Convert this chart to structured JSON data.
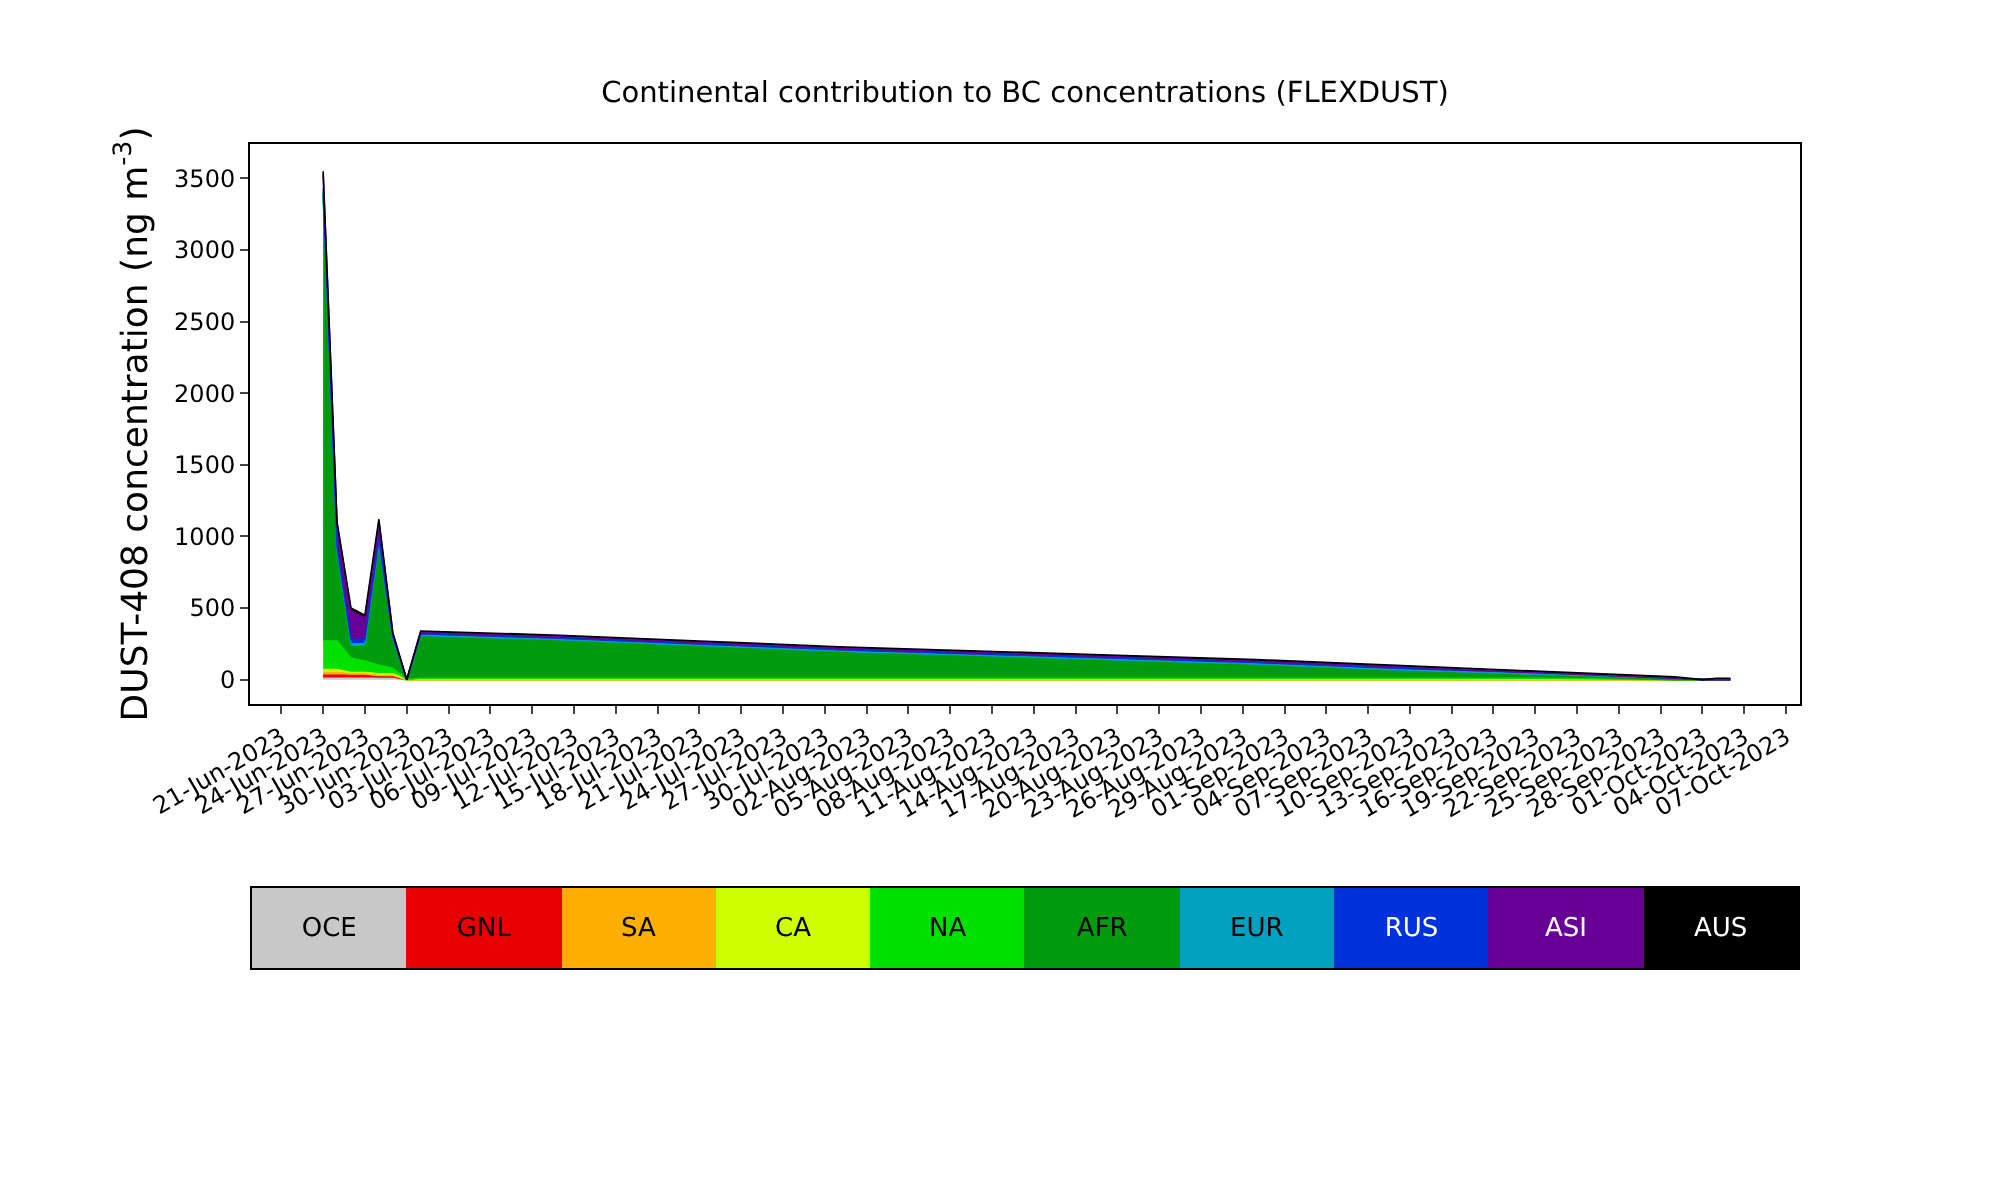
{
  "chart_data": {
    "type": "area",
    "stacked": true,
    "title": "Continental contribution to BC concentrations (FLEXDUST)",
    "ylabel": "DUST-408 concentration (ng m$^{-3}$)",
    "x": [
      "2023-06-24",
      "2023-06-25",
      "2023-06-26",
      "2023-06-27",
      "2023-06-28",
      "2023-06-29",
      "2023-06-30",
      "2023-07-01",
      "2023-07-11",
      "2023-07-21",
      "2023-07-31",
      "2023-08-10",
      "2023-08-20",
      "2023-08-30",
      "2023-09-09",
      "2023-09-19",
      "2023-09-29",
      "2023-10-01",
      "2023-10-02",
      "2023-10-03"
    ],
    "series": [
      {
        "name": "OCE",
        "color": "#c8c8c8",
        "values": [
          10,
          10,
          10,
          10,
          10,
          10,
          0,
          0,
          0,
          0,
          0,
          0,
          0,
          0,
          0,
          0,
          0,
          0,
          0,
          0
        ]
      },
      {
        "name": "GNL",
        "color": "#e60000",
        "values": [
          20,
          20,
          20,
          20,
          10,
          10,
          0,
          0,
          0,
          0,
          0,
          0,
          0,
          0,
          0,
          0,
          0,
          0,
          0,
          0
        ]
      },
      {
        "name": "SA",
        "color": "#ffaf00",
        "values": [
          20,
          20,
          10,
          10,
          10,
          10,
          0,
          0,
          0,
          0,
          0,
          0,
          0,
          0,
          0,
          0,
          0,
          0,
          0,
          0
        ]
      },
      {
        "name": "CA",
        "color": "#cdff00",
        "values": [
          20,
          20,
          10,
          10,
          10,
          10,
          0,
          0,
          0,
          0,
          0,
          0,
          0,
          0,
          0,
          0,
          0,
          0,
          0,
          0
        ]
      },
      {
        "name": "NA",
        "color": "#00e100",
        "values": [
          200,
          200,
          100,
          80,
          60,
          40,
          0,
          10,
          10,
          10,
          10,
          10,
          10,
          10,
          10,
          10,
          0,
          0,
          0,
          0
        ]
      },
      {
        "name": "AFR",
        "color": "#009b0f",
        "values": [
          3110,
          610,
          80,
          100,
          830,
          200,
          0,
          290,
          260,
          220,
          180,
          150,
          120,
          90,
          50,
          20,
          0,
          0,
          0,
          0
        ]
      },
      {
        "name": "EUR",
        "color": "#00a0be",
        "values": [
          20,
          20,
          20,
          20,
          20,
          10,
          0,
          10,
          10,
          10,
          10,
          10,
          10,
          10,
          10,
          10,
          10,
          0,
          0,
          0
        ]
      },
      {
        "name": "RUS",
        "color": "#0032dc",
        "values": [
          30,
          30,
          30,
          30,
          30,
          10,
          0,
          10,
          10,
          10,
          10,
          10,
          10,
          10,
          10,
          10,
          0,
          0,
          0,
          0
        ]
      },
      {
        "name": "ASI",
        "color": "#690096",
        "values": [
          100,
          150,
          200,
          150,
          120,
          20,
          0,
          10,
          10,
          10,
          10,
          10,
          10,
          10,
          10,
          0,
          0,
          0,
          0,
          0
        ]
      },
      {
        "name": "AUS",
        "color": "#000000",
        "values": [
          20,
          20,
          20,
          20,
          20,
          10,
          0,
          10,
          10,
          10,
          10,
          10,
          10,
          10,
          10,
          10,
          10,
          0,
          10,
          10
        ]
      }
    ],
    "xlim": [
      "2023-06-18T18:00",
      "2023-10-08"
    ],
    "xticks": [
      {
        "value": "2023-06-21",
        "label": "21-Jun-2023"
      },
      {
        "value": "2023-06-24",
        "label": "24-Jun-2023"
      },
      {
        "value": "2023-06-27",
        "label": "27-Jun-2023"
      },
      {
        "value": "2023-06-30",
        "label": "30-Jun-2023"
      },
      {
        "value": "2023-07-03",
        "label": "03-Jul-2023"
      },
      {
        "value": "2023-07-06",
        "label": "06-Jul-2023"
      },
      {
        "value": "2023-07-09",
        "label": "09-Jul-2023"
      },
      {
        "value": "2023-07-12",
        "label": "12-Jul-2023"
      },
      {
        "value": "2023-07-15",
        "label": "15-Jul-2023"
      },
      {
        "value": "2023-07-18",
        "label": "18-Jul-2023"
      },
      {
        "value": "2023-07-21",
        "label": "21-Jul-2023"
      },
      {
        "value": "2023-07-24",
        "label": "24-Jul-2023"
      },
      {
        "value": "2023-07-27",
        "label": "27-Jul-2023"
      },
      {
        "value": "2023-07-30",
        "label": "30-Jul-2023"
      },
      {
        "value": "2023-08-02",
        "label": "02-Aug-2023"
      },
      {
        "value": "2023-08-05",
        "label": "05-Aug-2023"
      },
      {
        "value": "2023-08-08",
        "label": "08-Aug-2023"
      },
      {
        "value": "2023-08-11",
        "label": "11-Aug-2023"
      },
      {
        "value": "2023-08-14",
        "label": "14-Aug-2023"
      },
      {
        "value": "2023-08-17",
        "label": "17-Aug-2023"
      },
      {
        "value": "2023-08-20",
        "label": "20-Aug-2023"
      },
      {
        "value": "2023-08-23",
        "label": "23-Aug-2023"
      },
      {
        "value": "2023-08-26",
        "label": "26-Aug-2023"
      },
      {
        "value": "2023-08-29",
        "label": "29-Aug-2023"
      },
      {
        "value": "2023-09-01",
        "label": "01-Sep-2023"
      },
      {
        "value": "2023-09-04",
        "label": "04-Sep-2023"
      },
      {
        "value": "2023-09-07",
        "label": "07-Sep-2023"
      },
      {
        "value": "2023-09-10",
        "label": "10-Sep-2023"
      },
      {
        "value": "2023-09-13",
        "label": "13-Sep-2023"
      },
      {
        "value": "2023-09-16",
        "label": "16-Sep-2023"
      },
      {
        "value": "2023-09-19",
        "label": "19-Sep-2023"
      },
      {
        "value": "2023-09-22",
        "label": "22-Sep-2023"
      },
      {
        "value": "2023-09-25",
        "label": "25-Sep-2023"
      },
      {
        "value": "2023-09-28",
        "label": "28-Sep-2023"
      },
      {
        "value": "2023-10-01",
        "label": "01-Oct-2023"
      },
      {
        "value": "2023-10-04",
        "label": "04-Oct-2023"
      },
      {
        "value": "2023-10-07",
        "label": "07-Oct-2023"
      }
    ],
    "ylim": [
      -170,
      3740
    ],
    "yticks": [
      0,
      500,
      1000,
      1500,
      2000,
      2500,
      3000,
      3500
    ],
    "grid": false,
    "legend": "bottom"
  }
}
